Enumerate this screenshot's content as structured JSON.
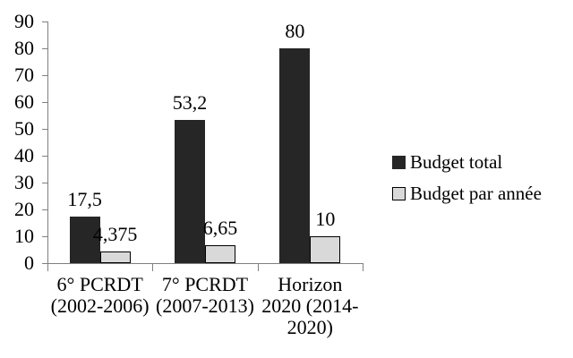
{
  "chart_data": {
    "type": "bar",
    "title": "",
    "categories": [
      "6° PCRDT (2002-2006)",
      "7° PCRDT (2007-2013)",
      "Horizon 2020 (2014-2020)"
    ],
    "category_label_lines": [
      [
        "6° PCRDT",
        "(2002-2006)"
      ],
      [
        "7° PCRDT",
        "(2007-2013)"
      ],
      [
        "Horizon",
        "2020 (2014-",
        "2020)"
      ]
    ],
    "series": [
      {
        "name": "Budget total",
        "values": [
          17.5,
          53.2,
          80
        ],
        "data_labels": [
          "17,5",
          "53,2",
          "80"
        ],
        "fill_color": "#262626",
        "border_color": "#262626"
      },
      {
        "name": "Budget par année",
        "values": [
          4.375,
          6.65,
          10
        ],
        "data_labels": [
          "4,375",
          "6,65",
          "10"
        ],
        "fill_color": "#d9d9d9",
        "border_color": "#000000"
      }
    ],
    "y_axis": {
      "min": 0,
      "max": 90,
      "step": 10,
      "tick_labels": [
        "0",
        "10",
        "20",
        "30",
        "40",
        "50",
        "60",
        "70",
        "80",
        "90"
      ]
    },
    "x_axis": {
      "line_visible": true
    },
    "legend_position": "right",
    "grid": false,
    "colors": {
      "axis": "#808080",
      "text": "#000000",
      "background": "#ffffff"
    }
  }
}
